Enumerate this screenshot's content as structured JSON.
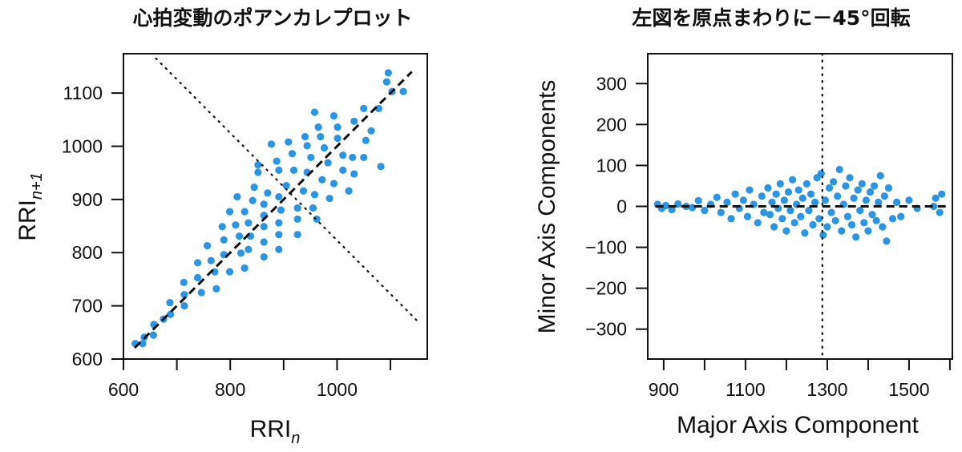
{
  "chart_data": [
    {
      "type": "scatter",
      "title": "心拍変動のポアンカレプロット",
      "xlabel": {
        "base": "RRI",
        "sub": "n"
      },
      "ylabel": {
        "base": "RRI",
        "sub": "n+1"
      },
      "xlim": [
        600,
        1169
      ],
      "ylim": [
        600,
        1174
      ],
      "xticks": [
        600,
        700,
        800,
        900,
        1000,
        1100
      ],
      "xtick_labels": [
        "600",
        "",
        "800",
        "",
        "1000",
        ""
      ],
      "yticks": [
        600,
        700,
        800,
        900,
        1000,
        1100
      ],
      "ytick_labels": [
        "600",
        "700",
        "800",
        "900",
        "1000",
        "1100"
      ],
      "point_color": "#2b95e2",
      "reference_lines": [
        {
          "style": "dashed",
          "from": [
            621,
            621
          ],
          "to": [
            1140,
            1140
          ]
        },
        {
          "style": "dotted",
          "from": [
            661,
            1165
          ],
          "to": [
            1150,
            672
          ]
        }
      ],
      "points": [
        [
          622,
          629
        ],
        [
          636,
          629
        ],
        [
          639,
          641
        ],
        [
          656,
          645
        ],
        [
          657,
          665
        ],
        [
          675,
          675
        ],
        [
          688,
          684
        ],
        [
          687,
          706
        ],
        [
          714,
          700
        ],
        [
          714,
          721
        ],
        [
          713,
          744
        ],
        [
          746,
          725
        ],
        [
          739,
          753
        ],
        [
          774,
          732
        ],
        [
          739,
          781
        ],
        [
          771,
          764
        ],
        [
          764,
          785
        ],
        [
          799,
          764
        ],
        [
          757,
          813
        ],
        [
          788,
          796
        ],
        [
          827,
          771
        ],
        [
          788,
          824
        ],
        [
          820,
          799
        ],
        [
          785,
          849
        ],
        [
          834,
          806
        ],
        [
          817,
          831
        ],
        [
          863,
          792
        ],
        [
          810,
          852
        ],
        [
          838,
          831
        ],
        [
          799,
          877
        ],
        [
          863,
          820
        ],
        [
          834,
          856
        ],
        [
          891,
          806
        ],
        [
          827,
          877
        ],
        [
          863,
          849
        ],
        [
          813,
          905
        ],
        [
          891,
          834
        ],
        [
          863,
          870
        ],
        [
          842,
          898
        ],
        [
          891,
          856
        ],
        [
          863,
          891
        ],
        [
          926,
          834
        ],
        [
          845,
          923
        ],
        [
          895,
          880
        ],
        [
          870,
          912
        ],
        [
          926,
          863
        ],
        [
          891,
          905
        ],
        [
          852,
          951
        ],
        [
          926,
          884
        ],
        [
          852,
          965
        ],
        [
          962,
          863
        ],
        [
          905,
          926
        ],
        [
          955,
          884
        ],
        [
          891,
          955
        ],
        [
          937,
          916
        ],
        [
          887,
          972
        ],
        [
          958,
          909
        ],
        [
          919,
          955
        ],
        [
          877,
          1004
        ],
        [
          986,
          902
        ],
        [
          944,
          951
        ],
        [
          916,
          986
        ],
        [
          972,
          937
        ],
        [
          909,
          1008
        ],
        [
          994,
          930
        ],
        [
          951,
          979
        ],
        [
          1022,
          916
        ],
        [
          944,
          1001
        ],
        [
          983,
          969
        ],
        [
          940,
          1018
        ],
        [
          1011,
          955
        ],
        [
          976,
          997
        ],
        [
          1032,
          948
        ],
        [
          969,
          1018
        ],
        [
          1011,
          983
        ],
        [
          965,
          1036
        ],
        [
          1029,
          979
        ],
        [
          1001,
          1015
        ],
        [
          958,
          1064
        ],
        [
          1050,
          979
        ],
        [
          1001,
          1036
        ],
        [
          1082,
          962
        ],
        [
          994,
          1057
        ],
        [
          1054,
          1011
        ],
        [
          1032,
          1047
        ],
        [
          1064,
          1029
        ],
        [
          1050,
          1071
        ],
        [
          1078,
          1071
        ],
        [
          1103,
          1103
        ],
        [
          1124,
          1103
        ],
        [
          1096,
          1138
        ],
        [
          1093,
          1121
        ]
      ]
    },
    {
      "type": "scatter",
      "title": "左図を原点まわりに－45°回転",
      "xlabel": "Major Axis Component",
      "ylabel": "Minor Axis Components",
      "xlim": [
        861,
        1606
      ],
      "ylim": [
        -373,
        373
      ],
      "xticks": [
        900,
        1000,
        1100,
        1200,
        1300,
        1400,
        1500,
        1600
      ],
      "xtick_labels": [
        "900",
        "",
        "1100",
        "",
        "1300",
        "",
        "1500",
        ""
      ],
      "yticks": [
        -300,
        -200,
        -100,
        0,
        100,
        200,
        300
      ],
      "ytick_labels": [
        "−300",
        "−200",
        "−100",
        "0",
        "100",
        "200",
        "300"
      ],
      "point_color": "#2b95e2",
      "reference_lines": [
        {
          "style": "dashed",
          "from": [
            880,
            0
          ],
          "to": [
            1590,
            0
          ]
        },
        {
          "style": "dotted",
          "from": [
            1288,
            373
          ],
          "to": [
            1288,
            -373
          ]
        }
      ],
      "points": [
        [
          885,
          5
        ],
        [
          895,
          -5
        ],
        [
          905,
          2
        ],
        [
          920,
          -8
        ],
        [
          935,
          6
        ],
        [
          955,
          0
        ],
        [
          970,
          -3
        ],
        [
          985,
          14
        ],
        [
          1000,
          -10
        ],
        [
          1015,
          5
        ],
        [
          1030,
          22
        ],
        [
          1040,
          -15
        ],
        [
          1055,
          10
        ],
        [
          1065,
          -30
        ],
        [
          1075,
          30
        ],
        [
          1085,
          -5
        ],
        [
          1095,
          15
        ],
        [
          1105,
          -25
        ],
        [
          1110,
          40
        ],
        [
          1120,
          5
        ],
        [
          1130,
          -40
        ],
        [
          1140,
          25
        ],
        [
          1145,
          -15
        ],
        [
          1155,
          45
        ],
        [
          1160,
          -20
        ],
        [
          1165,
          10
        ],
        [
          1170,
          -50
        ],
        [
          1175,
          30
        ],
        [
          1180,
          -5
        ],
        [
          1185,
          55
        ],
        [
          1190,
          -30
        ],
        [
          1195,
          15
        ],
        [
          1200,
          -60
        ],
        [
          1205,
          35
        ],
        [
          1210,
          -10
        ],
        [
          1215,
          65
        ],
        [
          1220,
          -40
        ],
        [
          1225,
          5
        ],
        [
          1230,
          40
        ],
        [
          1235,
          -25
        ],
        [
          1240,
          20
        ],
        [
          1245,
          -65
        ],
        [
          1250,
          55
        ],
        [
          1255,
          -10
        ],
        [
          1260,
          30
        ],
        [
          1265,
          -45
        ],
        [
          1270,
          10
        ],
        [
          1275,
          70
        ],
        [
          1280,
          -30
        ],
        [
          1285,
          80
        ],
        [
          1290,
          -70
        ],
        [
          1295,
          15
        ],
        [
          1300,
          -50
        ],
        [
          1305,
          45
        ],
        [
          1310,
          -15
        ],
        [
          1315,
          60
        ],
        [
          1320,
          -35
        ],
        [
          1325,
          25
        ],
        [
          1330,
          90
        ],
        [
          1335,
          -60
        ],
        [
          1340,
          5
        ],
        [
          1345,
          50
        ],
        [
          1350,
          -25
        ],
        [
          1355,
          70
        ],
        [
          1360,
          -45
        ],
        [
          1365,
          20
        ],
        [
          1370,
          -75
        ],
        [
          1375,
          40
        ],
        [
          1380,
          -10
        ],
        [
          1385,
          55
        ],
        [
          1390,
          -40
        ],
        [
          1395,
          15
        ],
        [
          1400,
          -60
        ],
        [
          1405,
          35
        ],
        [
          1410,
          -20
        ],
        [
          1415,
          50
        ],
        [
          1420,
          -35
        ],
        [
          1425,
          10
        ],
        [
          1430,
          75
        ],
        [
          1435,
          -50
        ],
        [
          1440,
          25
        ],
        [
          1445,
          -85
        ],
        [
          1450,
          45
        ],
        [
          1460,
          -30
        ],
        [
          1470,
          10
        ],
        [
          1480,
          -25
        ],
        [
          1500,
          15
        ],
        [
          1520,
          -5
        ],
        [
          1560,
          0
        ],
        [
          1575,
          -15
        ],
        [
          1580,
          30
        ],
        [
          1565,
          20
        ]
      ]
    }
  ]
}
